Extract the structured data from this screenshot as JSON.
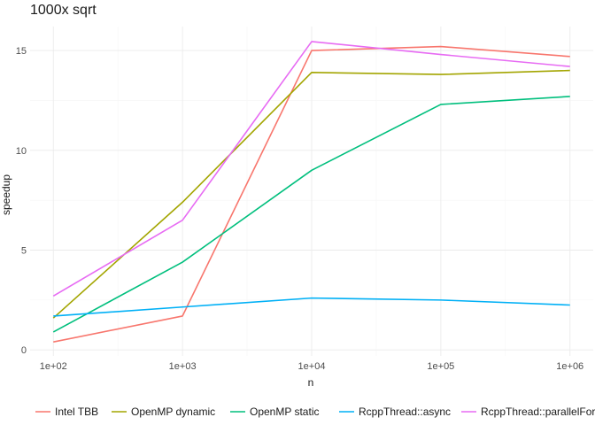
{
  "chart_data": {
    "type": "line",
    "title": "1000x sqrt",
    "xlabel": "n",
    "ylabel": "speedup",
    "x": [
      100,
      1000,
      10000,
      100000,
      1000000
    ],
    "x_tick_labels": [
      "1e+02",
      "1e+03",
      "1e+04",
      "1e+05",
      "1e+06"
    ],
    "x_scale": "log10",
    "y_ticks": [
      0,
      5,
      10,
      15
    ],
    "ylim": [
      -0.3,
      16.2
    ],
    "grid": true,
    "legend_position": "bottom",
    "series": [
      {
        "name": "Intel TBB",
        "color": "#F8766D",
        "values": [
          0.4,
          1.7,
          15.0,
          15.2,
          14.7
        ]
      },
      {
        "name": "OpenMP dynamic",
        "color": "#A3A500",
        "values": [
          1.6,
          7.4,
          13.9,
          13.8,
          14.0
        ]
      },
      {
        "name": "OpenMP static",
        "color": "#00BF7D",
        "values": [
          0.9,
          4.4,
          9.0,
          12.3,
          12.7
        ]
      },
      {
        "name": "RcppThread::async",
        "color": "#00B0F6",
        "values": [
          1.7,
          2.15,
          2.6,
          2.5,
          2.25
        ]
      },
      {
        "name": "RcppThread::parallelFor",
        "color": "#E76BF3",
        "values": [
          2.7,
          6.5,
          15.45,
          14.8,
          14.2
        ]
      }
    ]
  }
}
